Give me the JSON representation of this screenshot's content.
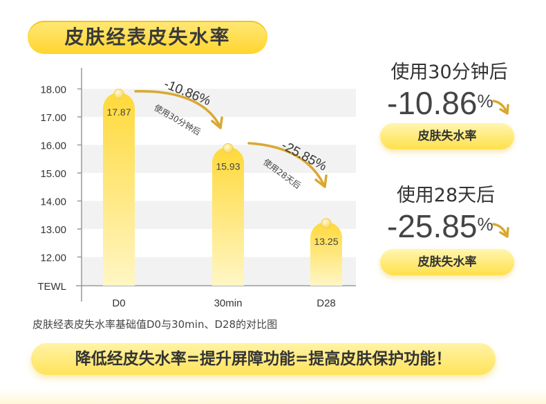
{
  "title": "皮肤经表皮失水率",
  "caption": "皮肤经表皮失水率基础值D0与30min、D28的对比图",
  "bottom_banner": "降低经皮失水率=提升屏障功能=提高皮肤保护功能！",
  "stats": [
    {
      "heading": "使用30分钟后",
      "value": "-10.86",
      "unit": "%",
      "label": "皮肤失水率"
    },
    {
      "heading": "使用28天后",
      "value": "-25.85",
      "unit": "%",
      "label": "皮肤失水率"
    }
  ],
  "colors": {
    "bar_top": "#ffd93a",
    "bar_bottom": "#fff6c4",
    "accent": "#ffd52e",
    "arrow": "#d9a830",
    "grid": "#f2f2f2"
  },
  "chart_data": {
    "type": "bar",
    "categories": [
      "D0",
      "30min",
      "D28"
    ],
    "values": [
      17.87,
      15.93,
      13.25
    ],
    "value_labels": [
      "17.87",
      "15.93",
      "13.25"
    ],
    "ylabel": "TEWL",
    "ylim": [
      11.5,
      18.6
    ],
    "yticks": [
      "18.00",
      "17.00",
      "16.00",
      "15.00",
      "14.00",
      "13.00",
      "12.00"
    ],
    "annotations": [
      {
        "from": "D0",
        "to": "30min",
        "change": "-10.86%",
        "note": "使用30分钟后"
      },
      {
        "from": "30min",
        "to": "D28",
        "change": "-25.85%",
        "note": "使用28天后"
      }
    ],
    "grid": true
  }
}
